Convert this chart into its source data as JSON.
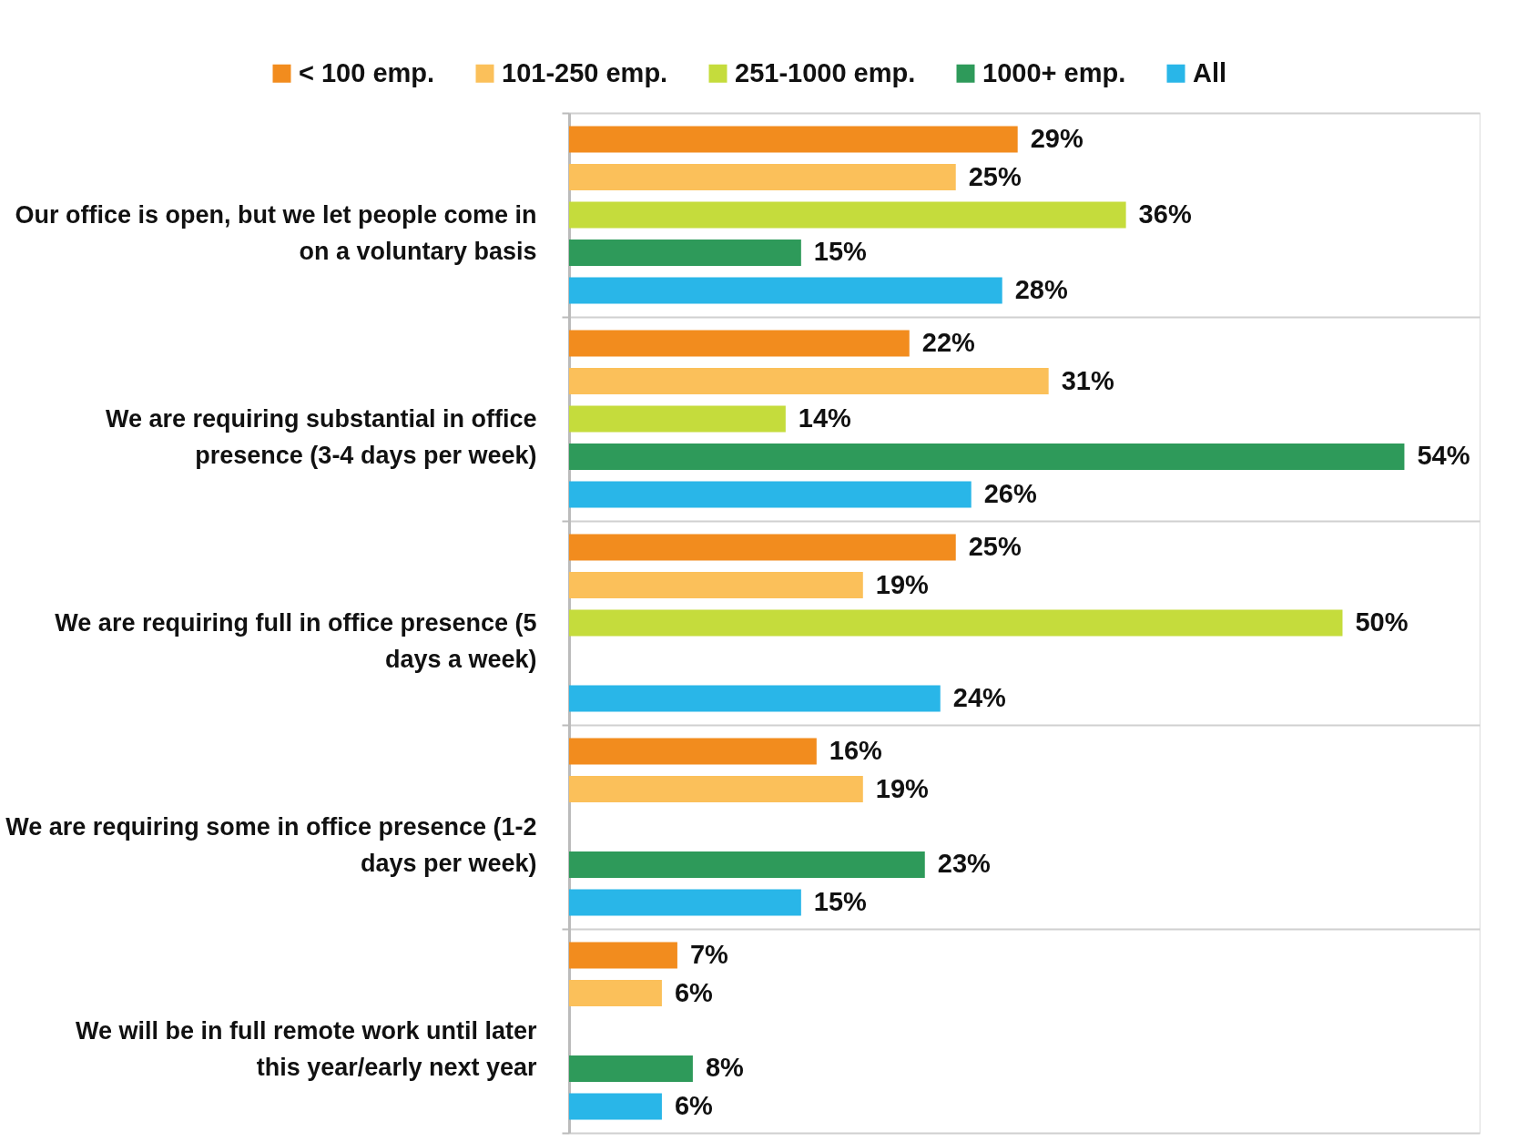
{
  "chart_data": {
    "type": "bar",
    "orientation": "horizontal",
    "legend": "top",
    "grid": "y",
    "categories": [
      "Our office is open, but we let people come in on a voluntary basis",
      "We are requiring substantial in office presence (3-4 days per week)",
      "We are requiring full in office presence (5 days a week)",
      "We are requiring some in office presence (1-2 days per week)",
      "We will be in full remote work until later this year/early next year"
    ],
    "series": [
      {
        "name": "< 100 emp.",
        "color": "#f28c1e",
        "values": [
          29,
          22,
          25,
          16,
          7
        ],
        "value_labels": [
          "29%",
          "22%",
          "25%",
          "16%",
          "7%"
        ]
      },
      {
        "name": "101-250 emp.",
        "color": "#fbc05a",
        "values": [
          25,
          31,
          19,
          19,
          6
        ],
        "value_labels": [
          "25%",
          "31%",
          "19%",
          "19%",
          "6%"
        ]
      },
      {
        "name": "251-1000 emp.",
        "color": "#c5dc3c",
        "values": [
          36,
          14,
          50,
          null,
          null
        ],
        "value_labels": [
          "36%",
          "14%",
          "50%",
          null,
          null
        ]
      },
      {
        "name": "1000+ emp.",
        "color": "#2e9a5a",
        "values": [
          15,
          54,
          null,
          23,
          8
        ],
        "value_labels": [
          "15%",
          "54%",
          null,
          "23%",
          "8%"
        ]
      },
      {
        "name": "All",
        "color": "#29b6e8",
        "values": [
          28,
          26,
          24,
          15,
          6
        ],
        "value_labels": [
          "28%",
          "26%",
          "24%",
          "15%",
          "6%"
        ]
      }
    ]
  }
}
